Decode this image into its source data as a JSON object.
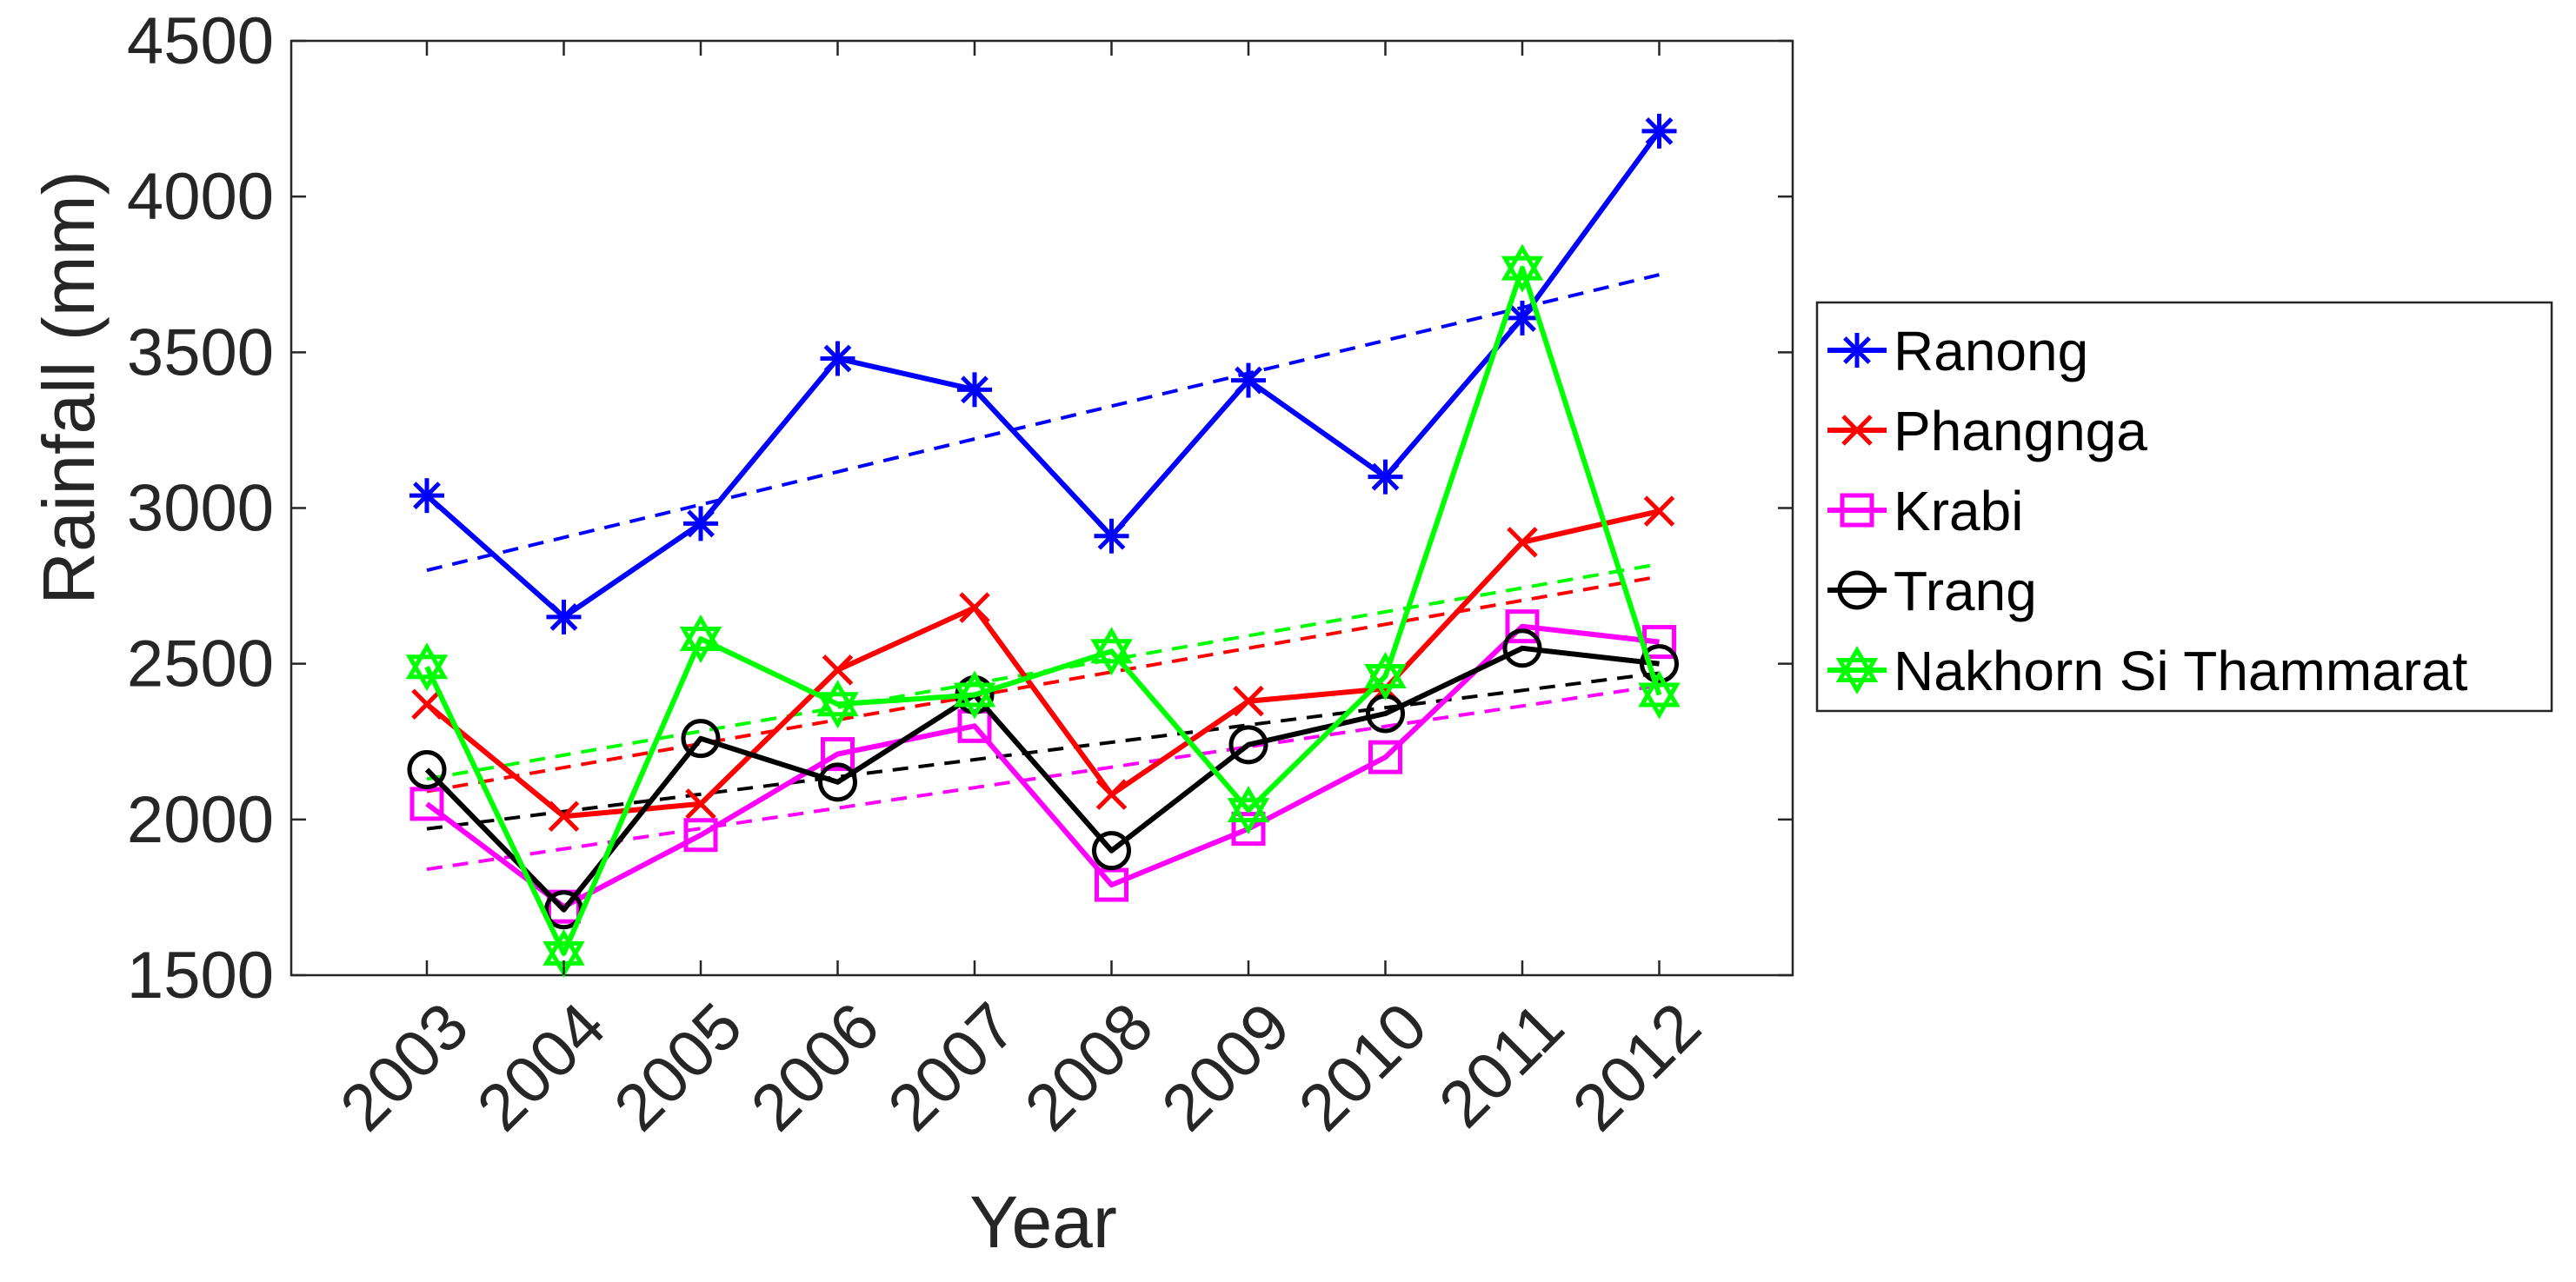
{
  "chart_data": {
    "type": "line",
    "title": "",
    "xlabel": "Year",
    "ylabel": "Rainfall (mm)",
    "categories": [
      "2003",
      "2004",
      "2005",
      "2006",
      "2007",
      "2008",
      "2009",
      "2010",
      "2011",
      "2012"
    ],
    "ylim": [
      1500,
      4500
    ],
    "yticks": [
      "1500",
      "2000",
      "2500",
      "3000",
      "3500",
      "4000",
      "4500"
    ],
    "grid": false,
    "legend_position": "right",
    "series": [
      {
        "name": "Ranong",
        "color": "#0000ff",
        "marker": "asterisk",
        "values": [
          3040,
          2650,
          2950,
          3480,
          3380,
          2910,
          3410,
          3100,
          3610,
          4210
        ],
        "trend": [
          2800,
          3749
        ]
      },
      {
        "name": "Phangnga",
        "color": "#ff0000",
        "marker": "x",
        "values": [
          2370,
          2010,
          2050,
          2480,
          2680,
          2080,
          2380,
          2420,
          2890,
          2990
        ],
        "trend": [
          2090,
          2780
        ]
      },
      {
        "name": "Krabi",
        "color": "#ff00ff",
        "marker": "square",
        "values": [
          2050,
          1720,
          1950,
          2210,
          2300,
          1790,
          1970,
          2200,
          2620,
          2570
        ],
        "trend": [
          1840,
          2430
        ]
      },
      {
        "name": "Trang",
        "color": "#000000",
        "marker": "circle",
        "values": [
          2160,
          1710,
          2260,
          2120,
          2400,
          1900,
          2240,
          2340,
          2550,
          2500
        ],
        "trend": [
          1970,
          2470
        ]
      },
      {
        "name": "Nakhorn Si Thammarat",
        "color": "#00ff00",
        "marker": "hexagram",
        "values": [
          2490,
          1570,
          2580,
          2370,
          2400,
          2540,
          2030,
          2460,
          3770,
          2400
        ],
        "trend": [
          2130,
          2820
        ]
      }
    ]
  }
}
